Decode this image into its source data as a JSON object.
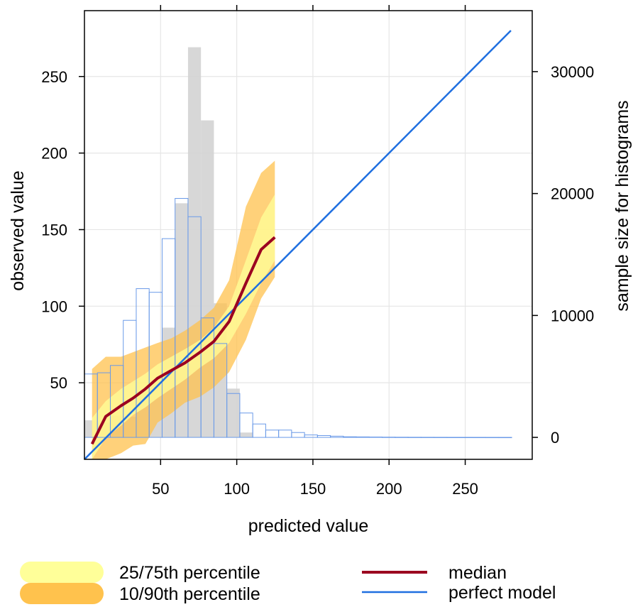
{
  "chart_data": {
    "type": "line",
    "xlabel": "predicted value",
    "ylabel": "observed value",
    "ylabel_right": "sample size for histograms",
    "x_ticks": [
      50,
      100,
      150,
      200,
      250
    ],
    "y_ticks": [
      50,
      100,
      150,
      200,
      250
    ],
    "y2_ticks": [
      0,
      10000,
      20000,
      30000
    ],
    "xlim": [
      0,
      294
    ],
    "ylim": [
      0,
      293
    ],
    "y2lim": [
      -1800,
      35000
    ],
    "grid": true,
    "colors": {
      "median": "#9b0020",
      "perfect_model": "#1f6fe0",
      "band_25_75": "#ffff99",
      "band_10_90": "#ffc24d",
      "hist_observed": "#d3d3d3",
      "hist_predicted": "#6a9ae8"
    },
    "median": {
      "x": [
        5,
        14,
        24,
        32,
        40,
        48,
        57,
        66,
        76,
        85,
        95,
        106,
        116,
        125
      ],
      "y": [
        10,
        28,
        35,
        40,
        46,
        53,
        58,
        63,
        70,
        77,
        90,
        115,
        137,
        145
      ]
    },
    "perfect_model": {
      "x": [
        0,
        280
      ],
      "y": [
        0,
        280
      ]
    },
    "band_25_75": {
      "x": [
        5,
        14,
        24,
        32,
        40,
        48,
        57,
        66,
        76,
        85,
        95,
        106,
        116,
        125
      ],
      "lower": [
        0,
        14,
        22,
        29,
        34,
        40,
        46,
        52,
        60,
        66,
        76,
        95,
        115,
        130
      ],
      "upper": [
        27,
        38,
        46,
        51,
        56,
        62,
        67,
        72,
        78,
        86,
        100,
        130,
        158,
        173
      ]
    },
    "band_10_90": {
      "x": [
        5,
        14,
        24,
        32,
        40,
        48,
        57,
        66,
        76,
        85,
        95,
        106,
        116,
        125
      ],
      "lower": [
        0,
        0,
        4,
        9,
        10,
        24,
        30,
        37,
        41,
        47,
        57,
        78,
        105,
        119
      ],
      "upper": [
        59,
        67,
        67,
        70,
        73,
        76,
        79,
        84,
        91,
        99,
        117,
        165,
        187,
        195
      ]
    },
    "hist_observed": {
      "bin_edges": [
        0,
        8.5,
        17,
        25.5,
        34,
        42.5,
        51,
        59.5,
        68,
        76.5,
        85,
        93.5,
        102,
        110.5
      ],
      "counts": [
        1400,
        1200,
        1800,
        1700,
        3800,
        4400,
        9000,
        19200,
        32000,
        26000,
        11000,
        4000,
        400
      ]
    },
    "hist_predicted": {
      "bin_edges": [
        0,
        8.5,
        17,
        25.5,
        34,
        42.5,
        51,
        59.5,
        68,
        76.5,
        85,
        93.5,
        102,
        110.5,
        119,
        127.5,
        136,
        144.5,
        153,
        161.5,
        170,
        178.5,
        187,
        195.5,
        204,
        212.5,
        221,
        229.5,
        238,
        246.5,
        255,
        263.5,
        272,
        280.5
      ],
      "counts": [
        5200,
        5300,
        5900,
        9600,
        12200,
        11900,
        16300,
        19600,
        18100,
        9800,
        7700,
        3600,
        2000,
        1100,
        600,
        600,
        400,
        200,
        150,
        100,
        50,
        40,
        30,
        20,
        15,
        12,
        10,
        8,
        6,
        5,
        4,
        3,
        2
      ]
    },
    "legend": [
      {
        "label": "25/75th percentile",
        "kind": "band",
        "color": "#ffff99"
      },
      {
        "label": "10/90th percentile",
        "kind": "band",
        "color": "#ffc24d"
      },
      {
        "label": "median",
        "kind": "line",
        "color": "#9b0020"
      },
      {
        "label": "perfect model",
        "kind": "line",
        "color": "#1f6fe0"
      }
    ],
    "legend_position": "bottom"
  }
}
